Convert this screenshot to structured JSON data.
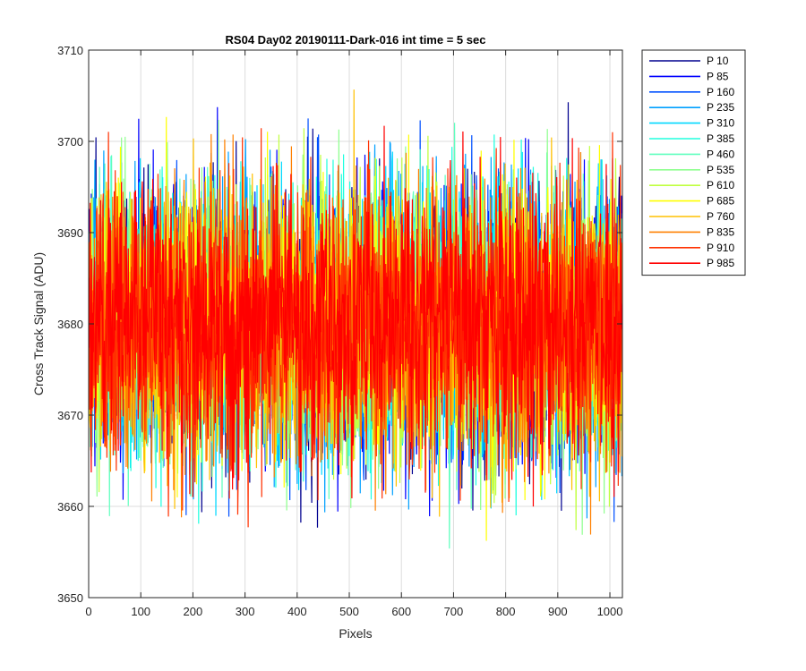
{
  "chart_data": {
    "type": "line",
    "title": "RS04 Day02 20190111-Dark-016 int time = 5 sec",
    "xlabel": "Pixels",
    "ylabel": "Cross Track Signal (ADU)",
    "xlim": [
      0,
      1024
    ],
    "ylim": [
      3650,
      3710
    ],
    "x_ticks": [
      0,
      100,
      200,
      300,
      400,
      500,
      600,
      700,
      800,
      900,
      1000
    ],
    "y_ticks": [
      3650,
      3660,
      3670,
      3680,
      3690,
      3700,
      3710
    ],
    "grid": true,
    "legend_position": "outside-top-right",
    "n_points": 1024,
    "series": [
      {
        "name": "P 10",
        "color": "#00008f",
        "mean": 3680,
        "spread": 7.5
      },
      {
        "name": "P 85",
        "color": "#0000ff",
        "mean": 3680,
        "spread": 7.5
      },
      {
        "name": "P 160",
        "color": "#0050ff",
        "mean": 3680,
        "spread": 7.5
      },
      {
        "name": "P 235",
        "color": "#00a0ff",
        "mean": 3680,
        "spread": 7.5
      },
      {
        "name": "P 310",
        "color": "#00d8ff",
        "mean": 3680,
        "spread": 7.5
      },
      {
        "name": "P 385",
        "color": "#20ffdf",
        "mean": 3680,
        "spread": 7.5
      },
      {
        "name": "P 460",
        "color": "#60ffbf",
        "mean": 3680,
        "spread": 7.5
      },
      {
        "name": "P 535",
        "color": "#90ff90",
        "mean": 3680,
        "spread": 7.5
      },
      {
        "name": "P 610",
        "color": "#c0ff40",
        "mean": 3680,
        "spread": 7.5
      },
      {
        "name": "P 685",
        "color": "#ffff00",
        "mean": 3680,
        "spread": 7.5
      },
      {
        "name": "P 760",
        "color": "#ffc000",
        "mean": 3680,
        "spread": 7.5
      },
      {
        "name": "P 835",
        "color": "#ff8000",
        "mean": 3680,
        "spread": 7.5
      },
      {
        "name": "P 910",
        "color": "#ff3000",
        "mean": 3680,
        "spread": 7.5
      },
      {
        "name": "P 985",
        "color": "#ff0000",
        "mean": 3680,
        "spread": 7.5
      }
    ]
  }
}
